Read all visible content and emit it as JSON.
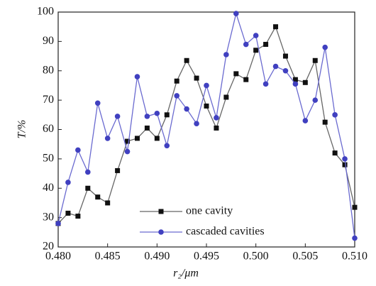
{
  "chart_data": {
    "type": "line",
    "xlabel": "r₂/μm",
    "ylabel": "T/%",
    "x": [
      0.48,
      0.481,
      0.482,
      0.483,
      0.484,
      0.485,
      0.486,
      0.487,
      0.488,
      0.489,
      0.49,
      0.491,
      0.492,
      0.493,
      0.494,
      0.495,
      0.496,
      0.497,
      0.498,
      0.499,
      0.5,
      0.501,
      0.502,
      0.503,
      0.504,
      0.505,
      0.506,
      0.507,
      0.508,
      0.509,
      0.51
    ],
    "series": [
      {
        "name": "one cavity",
        "color": "#111111",
        "line_color": "#666666",
        "values": [
          28,
          31.5,
          30.5,
          40,
          37,
          35,
          46,
          56,
          57,
          60.5,
          57,
          65,
          76.5,
          83.5,
          77.5,
          68,
          60.5,
          71,
          79,
          77,
          87,
          89,
          95,
          85,
          77,
          76,
          83.5,
          62.5,
          52,
          48,
          33.5
        ]
      },
      {
        "name": "cascaded cavities",
        "color": "#4040c0",
        "line_color": "#6a6ad0",
        "values": [
          28,
          42,
          53,
          45.5,
          69,
          57,
          64.5,
          52.5,
          78,
          64.5,
          65.5,
          54.5,
          71.5,
          67,
          62,
          75,
          64,
          85.5,
          99.5,
          89,
          92,
          75.5,
          81.5,
          80,
          75.5,
          63,
          70,
          88,
          65,
          50,
          23
        ]
      }
    ],
    "xlim": [
      0.48,
      0.51
    ],
    "xticks": [
      {
        "value": 0.48,
        "label": "0.480"
      },
      {
        "value": 0.485,
        "label": "0.485"
      },
      {
        "value": 0.49,
        "label": "0.490"
      },
      {
        "value": 0.495,
        "label": "0.495"
      },
      {
        "value": 0.5,
        "label": "0.500"
      },
      {
        "value": 0.505,
        "label": "0.505"
      },
      {
        "value": 0.51,
        "label": "0.510"
      }
    ],
    "ylim": [
      20,
      100
    ],
    "yticks": [
      20,
      30,
      40,
      50,
      60,
      70,
      80,
      90,
      100
    ]
  }
}
